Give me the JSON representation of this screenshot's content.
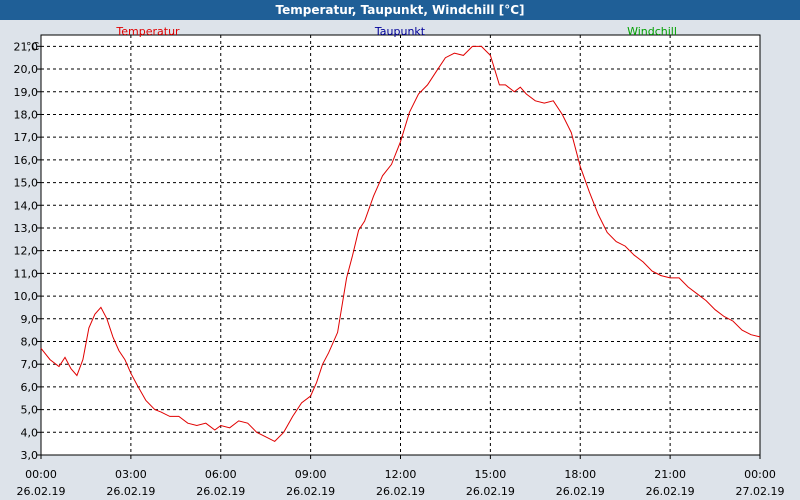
{
  "window": {
    "title": "Temperatur, Taupunkt, Windchill [°C]"
  },
  "chart_data": {
    "type": "line",
    "title": "Temperatur, Taupunkt, Windchill [°C]",
    "ylabel": "°C",
    "ylim": [
      3.0,
      21.5
    ],
    "xlim": [
      0,
      24
    ],
    "grid": true,
    "y_ticks": [
      "3,0",
      "4,0",
      "5,0",
      "6,0",
      "7,0",
      "8,0",
      "9,0",
      "10,0",
      "11,0",
      "12,0",
      "13,0",
      "14,0",
      "15,0",
      "16,0",
      "17,0",
      "18,0",
      "19,0",
      "20,0",
      "21,0"
    ],
    "x_ticks": [
      {
        "time": "00:00",
        "date": "26.02.19"
      },
      {
        "time": "03:00",
        "date": "26.02.19"
      },
      {
        "time": "06:00",
        "date": "26.02.19"
      },
      {
        "time": "09:00",
        "date": "26.02.19"
      },
      {
        "time": "12:00",
        "date": "26.02.19"
      },
      {
        "time": "15:00",
        "date": "26.02.19"
      },
      {
        "time": "18:00",
        "date": "26.02.19"
      },
      {
        "time": "21:00",
        "date": "26.02.19"
      },
      {
        "time": "00:00",
        "date": "27.02.19"
      }
    ],
    "legend": [
      {
        "name": "Temperatur",
        "color": "#e00000"
      },
      {
        "name": "Taupunkt",
        "color": "#000099"
      },
      {
        "name": "Windchill",
        "color": "#00a000"
      }
    ],
    "series": [
      {
        "name": "Temperatur",
        "color": "#e00000",
        "x": [
          0,
          0.3,
          0.6,
          0.8,
          1.0,
          1.2,
          1.4,
          1.6,
          1.8,
          2.0,
          2.2,
          2.4,
          2.6,
          2.8,
          3.0,
          3.2,
          3.5,
          3.8,
          4.0,
          4.3,
          4.6,
          4.9,
          5.2,
          5.5,
          5.8,
          6.0,
          6.3,
          6.6,
          6.9,
          7.2,
          7.5,
          7.8,
          8.1,
          8.4,
          8.7,
          9.0,
          9.2,
          9.4,
          9.6,
          9.9,
          10.2,
          10.4,
          10.6,
          10.8,
          11.1,
          11.4,
          11.7,
          12.0,
          12.3,
          12.6,
          12.9,
          13.2,
          13.5,
          13.8,
          14.1,
          14.4,
          14.7,
          15.0,
          15.3,
          15.5,
          15.8,
          16.0,
          16.2,
          16.5,
          16.8,
          17.1,
          17.4,
          17.7,
          18.0,
          18.3,
          18.6,
          18.9,
          19.2,
          19.5,
          19.8,
          20.1,
          20.4,
          20.7,
          21.0,
          21.3,
          21.6,
          21.9,
          22.2,
          22.5,
          22.8,
          23.1,
          23.4,
          23.7,
          24.0
        ],
        "y": [
          7.7,
          7.2,
          6.9,
          7.3,
          6.8,
          6.5,
          7.2,
          8.6,
          9.2,
          9.5,
          9.0,
          8.2,
          7.6,
          7.2,
          6.6,
          6.1,
          5.4,
          5.0,
          4.9,
          4.7,
          4.7,
          4.4,
          4.3,
          4.4,
          4.1,
          4.3,
          4.2,
          4.5,
          4.4,
          4.0,
          3.8,
          3.6,
          4.0,
          4.7,
          5.3,
          5.6,
          6.2,
          7.0,
          7.5,
          8.4,
          10.8,
          11.8,
          12.9,
          13.3,
          14.4,
          15.3,
          15.8,
          16.8,
          18.1,
          18.9,
          19.3,
          19.9,
          20.5,
          20.7,
          20.6,
          21.0,
          21.0,
          20.6,
          19.3,
          19.3,
          19.0,
          19.2,
          18.9,
          18.6,
          18.5,
          18.6,
          18.0,
          17.2,
          15.7,
          14.6,
          13.6,
          12.8,
          12.4,
          12.2,
          11.8,
          11.5,
          11.1,
          10.9,
          10.8,
          10.8,
          10.4,
          10.1,
          9.8,
          9.4,
          9.1,
          8.9,
          8.5,
          8.3,
          8.2
        ]
      }
    ]
  }
}
